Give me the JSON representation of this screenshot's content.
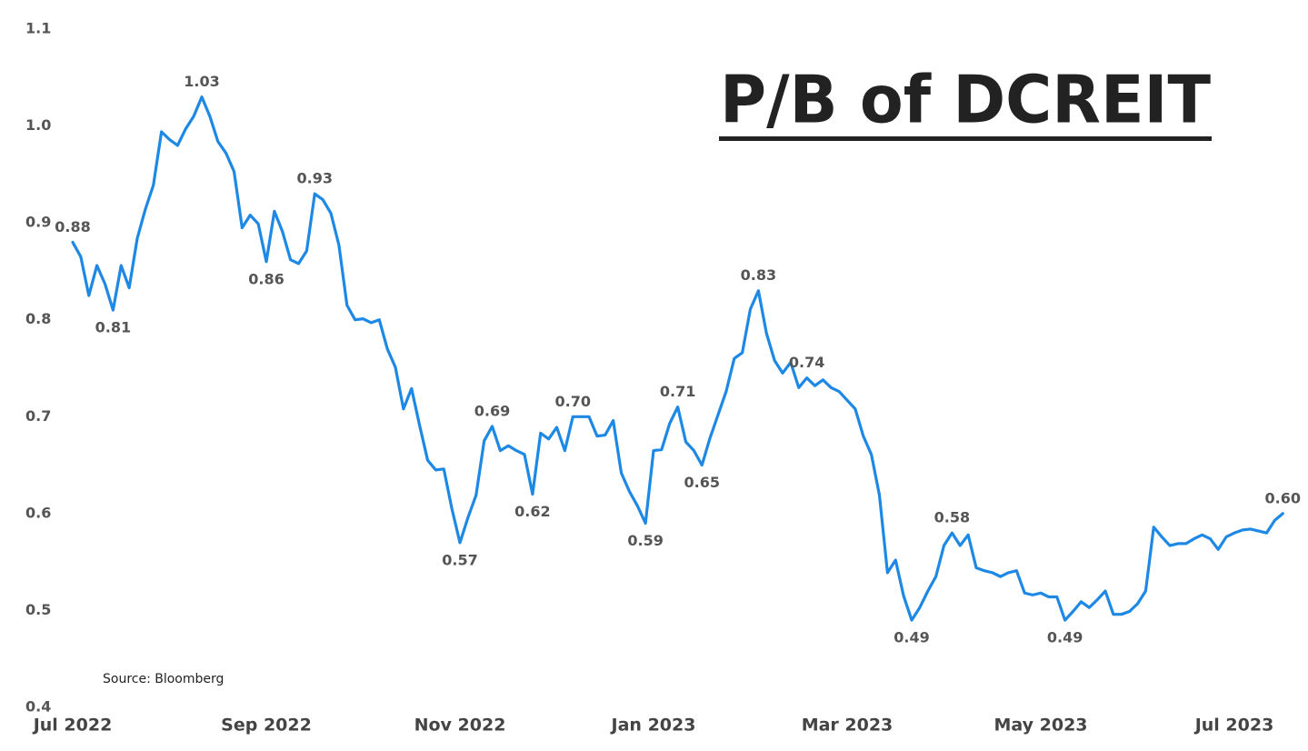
{
  "chart_data": {
    "type": "line",
    "title": "P/B of DCREIT",
    "source": "Source: Bloomberg",
    "color": "#1e88e5",
    "grid": false,
    "ylim": [
      0.4,
      1.1
    ],
    "yticks": [
      0.4,
      0.5,
      0.6,
      0.7,
      0.8,
      0.9,
      {
        "value": 1,
        "label": "1.0"
      },
      1.1
    ],
    "categories": [
      "Jul 2022",
      null,
      null,
      null,
      null,
      null,
      null,
      null,
      null,
      null,
      null,
      null,
      null,
      null,
      null,
      null,
      null,
      null,
      null,
      null,
      null,
      null,
      null,
      null,
      "Sep 2022",
      null,
      null,
      null,
      null,
      null,
      null,
      null,
      null,
      null,
      null,
      null,
      null,
      null,
      null,
      null,
      null,
      null,
      null,
      null,
      null,
      null,
      null,
      null,
      "Nov 2022",
      null,
      null,
      null,
      null,
      null,
      null,
      null,
      null,
      null,
      null,
      null,
      null,
      null,
      null,
      null,
      null,
      null,
      null,
      null,
      null,
      null,
      null,
      null,
      "Jan 2023",
      null,
      null,
      null,
      null,
      null,
      null,
      null,
      null,
      null,
      null,
      null,
      null,
      null,
      null,
      null,
      null,
      null,
      null,
      null,
      null,
      null,
      null,
      null,
      "Mar 2023",
      null,
      null,
      null,
      null,
      null,
      null,
      null,
      null,
      null,
      null,
      null,
      null,
      null,
      null,
      null,
      null,
      null,
      null,
      null,
      null,
      null,
      null,
      null,
      "May 2023",
      null,
      null,
      null,
      null,
      null,
      null,
      null,
      null,
      null,
      null,
      null,
      null,
      null,
      null,
      null,
      null,
      null,
      null,
      null,
      null,
      null,
      null,
      null,
      "Jul 2023",
      null,
      null,
      null,
      null,
      null,
      null
    ],
    "values": [
      0.88,
      0.865,
      0.825,
      0.856,
      0.837,
      0.81,
      0.856,
      0.833,
      0.884,
      0.914,
      0.939,
      0.994,
      0.986,
      0.98,
      0.997,
      1.01,
      1.03,
      1.01,
      0.984,
      0.972,
      0.953,
      0.895,
      0.908,
      0.899,
      0.86,
      0.912,
      0.891,
      0.862,
      0.858,
      0.871,
      0.93,
      0.924,
      0.91,
      0.877,
      0.815,
      0.8,
      0.801,
      0.797,
      0.8,
      0.77,
      0.751,
      0.708,
      0.729,
      0.691,
      0.655,
      0.645,
      0.646,
      0.605,
      0.57,
      0.596,
      0.619,
      0.675,
      0.69,
      0.665,
      0.67,
      0.665,
      0.661,
      0.62,
      0.683,
      0.677,
      0.689,
      0.665,
      0.7,
      0.7,
      0.7,
      0.68,
      0.681,
      0.696,
      0.642,
      0.623,
      0.608,
      0.59,
      0.665,
      0.666,
      0.693,
      0.71,
      0.674,
      0.665,
      0.65,
      0.678,
      0.702,
      0.726,
      0.76,
      0.766,
      0.811,
      0.83,
      0.786,
      0.758,
      0.745,
      0.756,
      0.73,
      0.74,
      0.732,
      0.738,
      0.73,
      0.726,
      0.717,
      0.708,
      0.68,
      0.661,
      0.619,
      0.539,
      0.552,
      0.515,
      0.49,
      0.503,
      0.52,
      0.535,
      0.567,
      0.58,
      0.567,
      0.578,
      0.544,
      0.541,
      0.539,
      0.535,
      0.539,
      0.541,
      0.518,
      0.516,
      0.518,
      0.514,
      0.514,
      0.49,
      0.499,
      0.509,
      0.503,
      0.511,
      0.52,
      0.496,
      0.496,
      0.499,
      0.507,
      0.52,
      0.586,
      0.576,
      0.567,
      0.569,
      0.569,
      0.574,
      0.578,
      0.574,
      0.563,
      0.576,
      0.58,
      0.583,
      0.584,
      0.582,
      0.58,
      0.593,
      0.6
    ],
    "value_labels": [
      "0.88",
      null,
      null,
      null,
      null,
      "0.81",
      null,
      null,
      null,
      null,
      null,
      null,
      null,
      null,
      null,
      null,
      "1.03",
      null,
      null,
      null,
      null,
      null,
      null,
      null,
      "0.86",
      null,
      null,
      null,
      null,
      null,
      "0.93",
      null,
      null,
      null,
      null,
      null,
      null,
      null,
      null,
      null,
      null,
      null,
      null,
      null,
      null,
      null,
      null,
      null,
      "0.57",
      null,
      null,
      null,
      "0.69",
      null,
      null,
      null,
      null,
      "0.62",
      null,
      null,
      null,
      null,
      "0.70",
      null,
      null,
      null,
      null,
      null,
      null,
      null,
      null,
      "0.59",
      null,
      null,
      null,
      "0.71",
      null,
      null,
      "0.65",
      null,
      null,
      null,
      null,
      null,
      null,
      "0.83",
      null,
      null,
      null,
      null,
      null,
      "0.74",
      null,
      null,
      null,
      null,
      null,
      null,
      null,
      null,
      null,
      null,
      null,
      null,
      "0.49",
      null,
      null,
      null,
      null,
      "0.58",
      null,
      null,
      null,
      null,
      null,
      null,
      null,
      null,
      null,
      null,
      null,
      null,
      null,
      "0.49",
      null,
      null,
      null,
      null,
      null,
      null,
      null,
      null,
      null,
      null,
      null,
      null,
      null,
      null,
      null,
      null,
      null,
      null,
      null,
      null,
      null,
      null,
      null,
      null,
      null,
      null,
      "0.60"
    ]
  }
}
